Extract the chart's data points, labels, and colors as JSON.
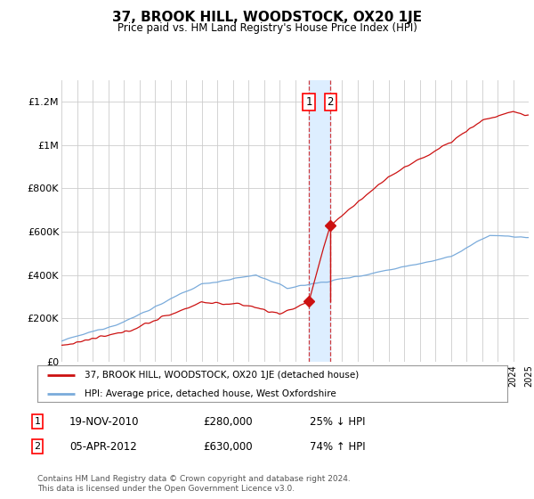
{
  "title": "37, BROOK HILL, WOODSTOCK, OX20 1JE",
  "subtitle": "Price paid vs. HM Land Registry's House Price Index (HPI)",
  "legend_line1": "37, BROOK HILL, WOODSTOCK, OX20 1JE (detached house)",
  "legend_line2": "HPI: Average price, detached house, West Oxfordshire",
  "transaction1_date": "19-NOV-2010",
  "transaction1_price": "£280,000",
  "transaction1_hpi": "25% ↓ HPI",
  "transaction2_date": "05-APR-2012",
  "transaction2_price": "£630,000",
  "transaction2_hpi": "74% ↑ HPI",
  "footer": "Contains HM Land Registry data © Crown copyright and database right 2024.\nThis data is licensed under the Open Government Licence v3.0.",
  "hpi_color": "#7aabdb",
  "price_color": "#cc1111",
  "background_color": "#ffffff",
  "grid_color": "#cccccc",
  "highlight_color": "#ddeeff",
  "ylim": [
    0,
    1300000
  ],
  "yticks": [
    0,
    200000,
    400000,
    600000,
    800000,
    1000000,
    1200000
  ],
  "ytick_labels": [
    "£0",
    "£200K",
    "£400K",
    "£600K",
    "£800K",
    "£1M",
    "£1.2M"
  ],
  "year_start": 1995,
  "year_end": 2025,
  "transaction1_year": 2010.89,
  "transaction1_value": 280000,
  "transaction2_year": 2012.27,
  "transaction2_value": 630000
}
